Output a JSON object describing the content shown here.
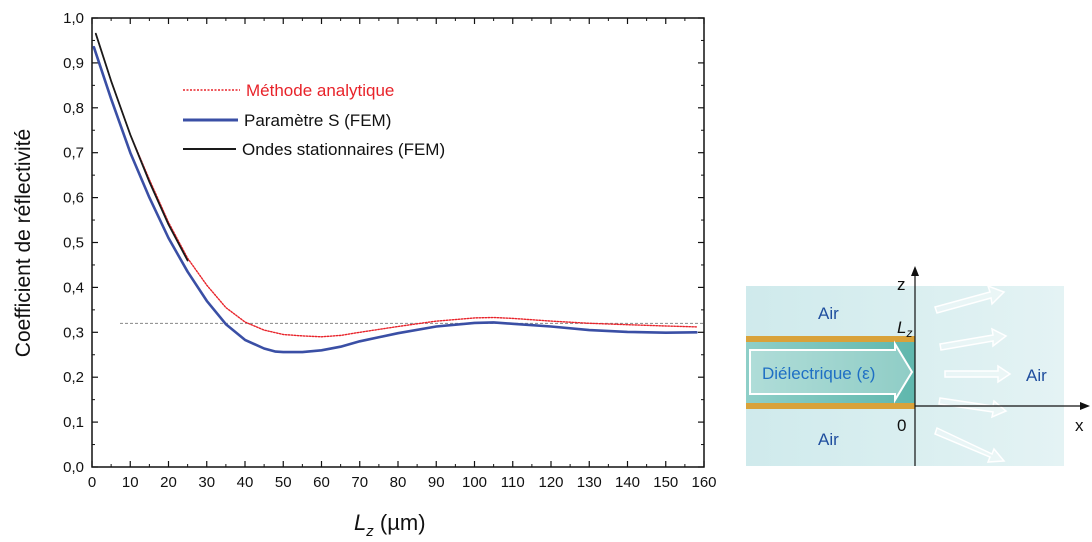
{
  "chart_data": {
    "type": "line",
    "xlabel_symbol": "L",
    "xlabel_subscript": "z",
    "xlabel_unit": " (µm)",
    "ylabel": "Coefficient de réflectivité",
    "xlim": [
      0,
      160
    ],
    "ylim": [
      0,
      1.0
    ],
    "x_ticks": [
      "0",
      "10",
      "20",
      "30",
      "40",
      "50",
      "60",
      "70",
      "80",
      "90",
      "100",
      "110",
      "120",
      "130",
      "140",
      "150",
      "160"
    ],
    "y_ticks": [
      "0,0",
      "0,1",
      "0,2",
      "0,3",
      "0,4",
      "0,5",
      "0,6",
      "0,7",
      "0,8",
      "0,9",
      "1,0"
    ],
    "grid": false,
    "reference_line_y": 0.32,
    "legend_position": "top-left",
    "series": [
      {
        "name": "Méthode analytique",
        "color": "#e8232a",
        "style": "dotted",
        "x": [
          1,
          5,
          10,
          15,
          20,
          25,
          30,
          35,
          40,
          45,
          50,
          55,
          60,
          65,
          70,
          80,
          90,
          100,
          105,
          110,
          120,
          130,
          140,
          150,
          158
        ],
        "y": [
          0.965,
          0.86,
          0.74,
          0.64,
          0.545,
          0.465,
          0.405,
          0.355,
          0.323,
          0.305,
          0.295,
          0.292,
          0.29,
          0.293,
          0.3,
          0.313,
          0.325,
          0.332,
          0.333,
          0.331,
          0.325,
          0.32,
          0.317,
          0.314,
          0.312
        ]
      },
      {
        "name": "Paramètre S (FEM)",
        "color": "#3a4fa5",
        "style": "solid",
        "x": [
          0.5,
          5,
          10,
          15,
          20,
          25,
          30,
          35,
          40,
          45,
          48,
          50,
          55,
          60,
          65,
          70,
          80,
          90,
          100,
          105,
          110,
          120,
          130,
          140,
          150,
          158
        ],
        "y": [
          0.935,
          0.82,
          0.7,
          0.6,
          0.51,
          0.435,
          0.37,
          0.318,
          0.283,
          0.264,
          0.257,
          0.256,
          0.256,
          0.26,
          0.268,
          0.28,
          0.298,
          0.313,
          0.321,
          0.322,
          0.319,
          0.313,
          0.305,
          0.301,
          0.299,
          0.3
        ]
      },
      {
        "name": "Ondes stationnaires (FEM)",
        "color": "#1a1a1a",
        "style": "solid",
        "x": [
          1,
          5,
          10,
          15,
          20,
          25
        ],
        "y": [
          0.965,
          0.86,
          0.74,
          0.635,
          0.54,
          0.46
        ]
      }
    ]
  },
  "schema": {
    "z_label": "z",
    "x_label": "x",
    "lz_label_symbol": "L",
    "lz_label_subscript": "z",
    "origin_label": "0",
    "air_top_left": "Air",
    "air_bottom_left": "Air",
    "air_right": "Air",
    "dielectric_label": "Diélectrique (ε)",
    "colors": {
      "background": "#d6eef0",
      "gold": "#d9a23a",
      "text_blue": "#1f4e9e",
      "dielectric_text": "#2a6fb8"
    }
  }
}
